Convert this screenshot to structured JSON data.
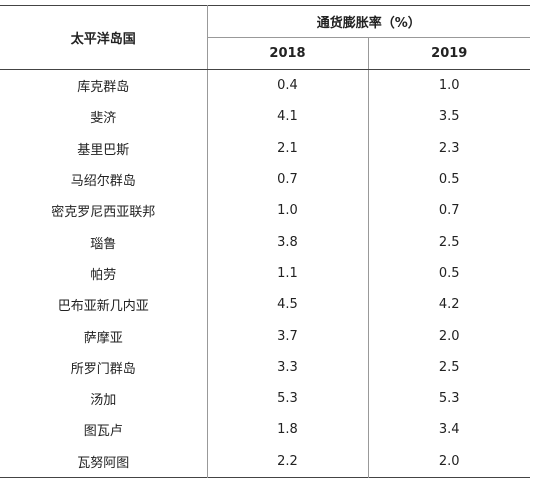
{
  "header": {
    "region": "太平洋岛国",
    "inflation": "通货膨胀率（%）",
    "years": [
      "2018",
      "2019"
    ]
  },
  "table": {
    "rows": [
      [
        "库克群岛",
        "0.4",
        "1.0"
      ],
      [
        "斐济",
        "4.1",
        "3.5"
      ],
      [
        "基里巴斯",
        "2.1",
        "2.3"
      ],
      [
        "马绍尔群岛",
        "0.7",
        "0.5"
      ],
      [
        "密克罗尼西亚联邦",
        "1.0",
        "0.7"
      ],
      [
        "瑙鲁",
        "3.8",
        "2.5"
      ],
      [
        "帕劳",
        "1.1",
        "0.5"
      ],
      [
        "巴布亚新几内亚",
        "4.5",
        "4.2"
      ],
      [
        "萨摩亚",
        "3.7",
        "2.0"
      ],
      [
        "所罗门群岛",
        "3.3",
        "2.5"
      ],
      [
        "汤加",
        "5.3",
        "5.3"
      ],
      [
        "图瓦卢",
        "1.8",
        "3.4"
      ],
      [
        "瓦努阿图",
        "2.2",
        "2.0"
      ]
    ]
  }
}
